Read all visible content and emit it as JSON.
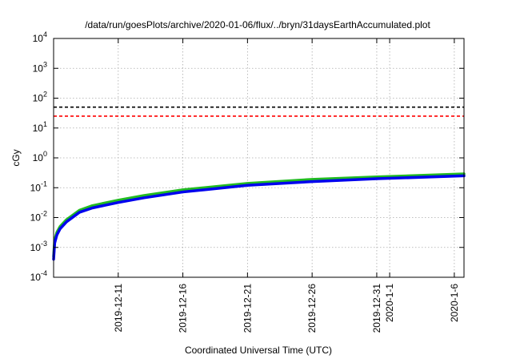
{
  "chart_data": {
    "type": "line",
    "title": "/data/run/goesPlots/archive/2020-01-06/flux/../bryn/31daysEarthAccumulated.plot",
    "xlabel": "Coordinated Universal Time (UTC)",
    "ylabel": "cGy",
    "yscale": "log",
    "ylim": [
      0.0001,
      10000
    ],
    "xlim": [
      "2019-12-06",
      "2020-01-06T18:00"
    ],
    "grid": true,
    "y_ticks": [
      {
        "value": 0.0001,
        "base": "10",
        "exp": "-4"
      },
      {
        "value": 0.001,
        "base": "10",
        "exp": "-3"
      },
      {
        "value": 0.01,
        "base": "10",
        "exp": "-2"
      },
      {
        "value": 0.1,
        "base": "10",
        "exp": "-1"
      },
      {
        "value": 1,
        "base": "10",
        "exp": "0"
      },
      {
        "value": 10,
        "base": "10",
        "exp": "1"
      },
      {
        "value": 100,
        "base": "10",
        "exp": "2"
      },
      {
        "value": 1000,
        "base": "10",
        "exp": "3"
      },
      {
        "value": 10000,
        "base": "10",
        "exp": "4"
      }
    ],
    "x_ticks": [
      {
        "x": "2019-12-11",
        "label": "2019-12-11"
      },
      {
        "x": "2019-12-16",
        "label": "2019-12-16"
      },
      {
        "x": "2019-12-21",
        "label": "2019-12-21"
      },
      {
        "x": "2019-12-26",
        "label": "2019-12-26"
      },
      {
        "x": "2019-12-31",
        "label": "2019-12-31"
      },
      {
        "x": "2020-01-01",
        "label": "2020-1-1"
      },
      {
        "x": "2020-01-06",
        "label": "2020-1-6"
      }
    ],
    "reference_lines": [
      {
        "y": 50,
        "color": "#000000",
        "style": "dashed"
      },
      {
        "y": 25,
        "color": "#ff0000",
        "style": "dashed"
      }
    ],
    "series": [
      {
        "color": "#22bb22",
        "x": [
          "2019-12-06T00:00",
          "2019-12-06T02:00",
          "2019-12-06T06:00",
          "2019-12-06T12:00",
          "2019-12-07T00:00",
          "2019-12-08T00:00",
          "2019-12-09T00:00",
          "2019-12-10T00:00",
          "2019-12-11T00:00",
          "2019-12-13T00:00",
          "2019-12-16T00:00",
          "2019-12-21T00:00",
          "2019-12-26T00:00",
          "2019-12-31T00:00",
          "2020-01-06T18:00"
        ],
        "y": [
          0.0005,
          0.0018,
          0.0032,
          0.005,
          0.0085,
          0.0175,
          0.025,
          0.031,
          0.038,
          0.055,
          0.085,
          0.14,
          0.19,
          0.23,
          0.29
        ]
      },
      {
        "color": "#0000ee",
        "x": [
          "2019-12-06T00:00",
          "2019-12-06T02:00",
          "2019-12-06T06:00",
          "2019-12-06T12:00",
          "2019-12-07T00:00",
          "2019-12-08T00:00",
          "2019-12-09T00:00",
          "2019-12-10T00:00",
          "2019-12-11T00:00",
          "2019-12-13T00:00",
          "2019-12-16T00:00",
          "2019-12-21T00:00",
          "2019-12-26T00:00",
          "2019-12-31T00:00",
          "2020-01-06T18:00"
        ],
        "y": [
          0.0004,
          0.0014,
          0.0026,
          0.0042,
          0.0072,
          0.015,
          0.021,
          0.026,
          0.032,
          0.046,
          0.072,
          0.12,
          0.16,
          0.2,
          0.25
        ]
      }
    ]
  }
}
